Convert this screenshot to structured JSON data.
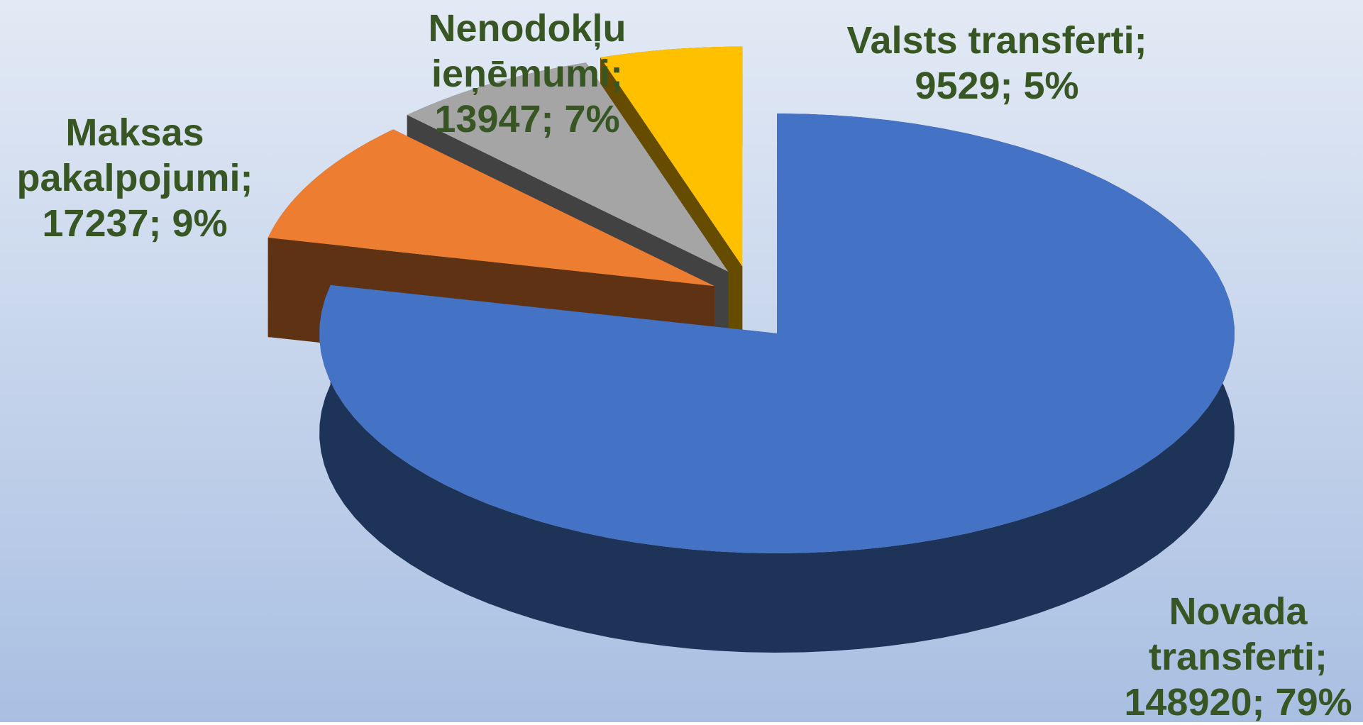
{
  "chart_data": {
    "type": "pie3d",
    "categories": [
      "Novada transferti;",
      "Maksas pakalpojumi;",
      "Nenodokļu ieņēmumi;",
      "Valsts transferti;"
    ],
    "values": [
      148920,
      17237,
      13947,
      9529
    ],
    "value_labels": [
      "148920; 79%",
      "17237; 9%",
      "13947; 7%",
      "9529; 5%"
    ],
    "colors": [
      "#4472c4",
      "#ed7d31",
      "#a5a5a5",
      "#ffc000"
    ]
  }
}
